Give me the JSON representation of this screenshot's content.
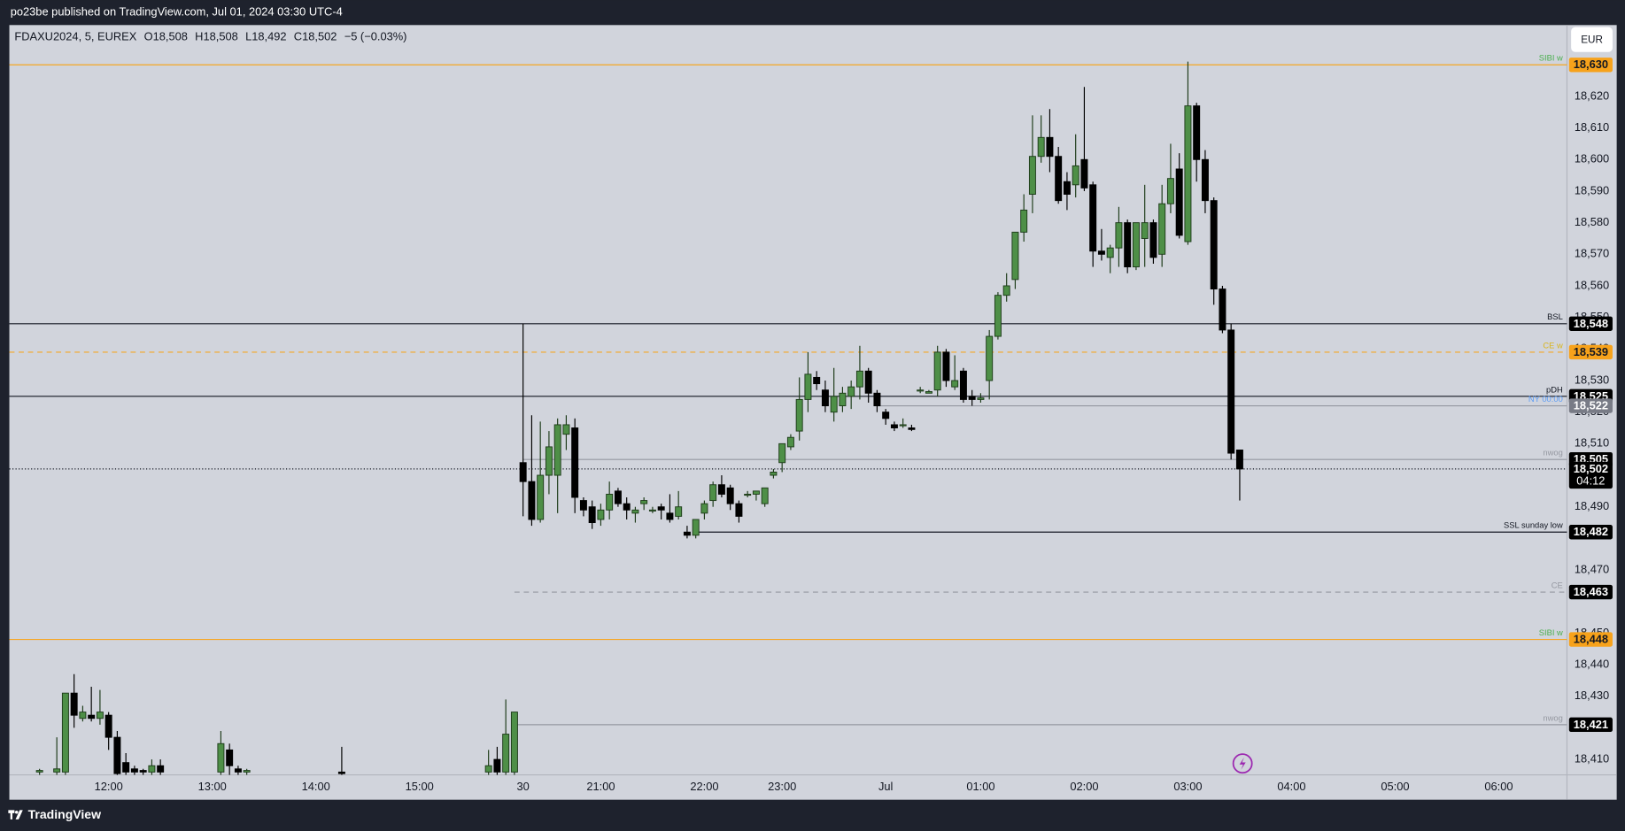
{
  "header": {
    "publisher": "po23be published on TradingView.com, Jul 01, 2024 03:30 UTC-4"
  },
  "currency": "EUR",
  "footer": "TradingView",
  "chart_data": {
    "type": "candlestick",
    "legend": {
      "symbol": "FDAXU2024, 5, EUREX",
      "open": "O18,508",
      "high": "H18,508",
      "low": "L18,492",
      "close": "C18,502",
      "change": "−5 (−0.03%)"
    },
    "up_color": "#4e8f47",
    "down_color": "#000000",
    "grid": false,
    "xlim": [
      -0.5,
      179.9
    ],
    "ylim": [
      18405.1,
      18642.6
    ],
    "xticks": [
      {
        "value": 11,
        "label": "12:00"
      },
      {
        "value": 23,
        "label": "13:00"
      },
      {
        "value": 35,
        "label": "14:00"
      },
      {
        "value": 47,
        "label": "15:00"
      },
      {
        "value": 59,
        "label": "30"
      },
      {
        "value": 68,
        "label": "21:00"
      },
      {
        "value": 80,
        "label": "22:00"
      },
      {
        "value": 89,
        "label": "23:00"
      },
      {
        "value": 101,
        "label": "Jul"
      },
      {
        "value": 112,
        "label": "01:00"
      },
      {
        "value": 124,
        "label": "02:00"
      },
      {
        "value": 136,
        "label": "03:00"
      },
      {
        "value": 148,
        "label": "04:00"
      },
      {
        "value": 160,
        "label": "05:00"
      },
      {
        "value": 172,
        "label": "06:00"
      }
    ],
    "yticks": [
      {
        "value": 18410,
        "label": "18,410"
      },
      {
        "value": 18430,
        "label": "18,430"
      },
      {
        "value": 18440,
        "label": "18,440"
      },
      {
        "value": 18450,
        "label": "18,450"
      },
      {
        "value": 18470,
        "label": "18,470"
      },
      {
        "value": 18490,
        "label": "18,490"
      },
      {
        "value": 18510,
        "label": "18,510"
      },
      {
        "value": 18520,
        "label": "18,520"
      },
      {
        "value": 18530,
        "label": "18,530"
      },
      {
        "value": 18540,
        "label": "18,540"
      },
      {
        "value": 18550,
        "label": "18,550"
      },
      {
        "value": 18560,
        "label": "18,560"
      },
      {
        "value": 18570,
        "label": "18,570"
      },
      {
        "value": 18580,
        "label": "18,580"
      },
      {
        "value": 18590,
        "label": "18,590"
      },
      {
        "value": 18600,
        "label": "18,600"
      },
      {
        "value": 18610,
        "label": "18,610"
      },
      {
        "value": 18620,
        "label": "18,620"
      }
    ],
    "levels": [
      {
        "name": "SIBI w",
        "value": 18630,
        "value_label": "18,630",
        "line": "#f5a623",
        "text": "#4caf50",
        "box": "#f7a21b",
        "box_text": "#131722"
      },
      {
        "name": "BSL",
        "value": 18548,
        "value_label": "18,548",
        "line": "#131722",
        "text": "#131722",
        "box": "#000000",
        "box_text": "#ffffff"
      },
      {
        "name": "CE w",
        "value": 18539,
        "value_label": "18,539",
        "line": "#f5a623",
        "dash": "dashed",
        "text": "#d9b51c",
        "box": "#f7a21b",
        "box_text": "#131722"
      },
      {
        "name": "pDH",
        "value": 18525,
        "value_label": "18,525",
        "line": "#131722",
        "text": "#131722",
        "box": "#000000",
        "box_text": "#ffffff"
      },
      {
        "name": "NY 00:00",
        "value": 18522,
        "value_label": "18,522",
        "start": 100,
        "line": "#9598a1",
        "text": "#5b9cf6",
        "box": "#787b86",
        "box_text": "#ffffff"
      },
      {
        "name": "nwog",
        "value": 18505,
        "value_label": "18,505",
        "start": 59,
        "line": "#9598a1",
        "text": "#9598a1",
        "box": "#000000",
        "box_text": "#ffffff"
      },
      {
        "value": 18502,
        "value_label": "18,502",
        "countdown": "04:12",
        "line": "#131722",
        "dash": "dotted",
        "box": "#000000",
        "box_text": "#ffffff"
      },
      {
        "name": "SSL sunday low",
        "value": 18482,
        "value_label": "18,482",
        "start": 79,
        "line": "#131722",
        "text": "#131722",
        "box": "#000000",
        "box_text": "#ffffff"
      },
      {
        "name": "CE",
        "value": 18463,
        "value_label": "18,463",
        "start": 58,
        "line": "#9598a1",
        "dash": "dashed",
        "text": "#9598a1",
        "box": "#000000",
        "box_text": "#ffffff"
      },
      {
        "name": "SIBI w",
        "value": 18448,
        "value_label": "18,448",
        "line": "#f5a623",
        "text": "#4caf50",
        "box": "#f7a21b",
        "box_text": "#131722"
      },
      {
        "name": "nwog",
        "value": 18421,
        "value_label": "18,421",
        "start": 58,
        "line": "#9598a1",
        "text": "#9598a1",
        "box": "#000000",
        "box_text": "#ffffff"
      }
    ],
    "candles": [
      {
        "x": 3,
        "o": 18406,
        "h": 18407,
        "l": 18405,
        "c": 18406.5
      },
      {
        "x": 5,
        "o": 18406,
        "h": 18417,
        "l": 18405,
        "c": 18407
      },
      {
        "x": 6,
        "o": 18406,
        "h": 18431,
        "l": 18405,
        "c": 18431
      },
      {
        "x": 7,
        "o": 18431,
        "h": 18437,
        "l": 18420,
        "c": 18424
      },
      {
        "x": 8,
        "o": 18423,
        "h": 18427,
        "l": 18422,
        "c": 18425
      },
      {
        "x": 9,
        "o": 18424,
        "h": 18433,
        "l": 18422,
        "c": 18423
      },
      {
        "x": 10,
        "o": 18423,
        "h": 18432,
        "l": 18421,
        "c": 18425
      },
      {
        "x": 11,
        "o": 18424,
        "h": 18425,
        "l": 18413,
        "c": 18417
      },
      {
        "x": 12,
        "o": 18417,
        "h": 18419,
        "l": 18405,
        "c": 18405.5
      },
      {
        "x": 13,
        "o": 18409,
        "h": 18412,
        "l": 18405,
        "c": 18406
      },
      {
        "x": 14,
        "o": 18407,
        "h": 18408,
        "l": 18405,
        "c": 18406
      },
      {
        "x": 15,
        "o": 18406.5,
        "h": 18407,
        "l": 18405,
        "c": 18406
      },
      {
        "x": 16,
        "o": 18406,
        "h": 18410,
        "l": 18405,
        "c": 18408
      },
      {
        "x": 17,
        "o": 18408,
        "h": 18410,
        "l": 18405,
        "c": 18406
      },
      {
        "x": 24,
        "o": 18406,
        "h": 18419,
        "l": 18405,
        "c": 18415
      },
      {
        "x": 25,
        "o": 18413,
        "h": 18415,
        "l": 18405,
        "c": 18408
      },
      {
        "x": 26,
        "o": 18407,
        "h": 18408,
        "l": 18405,
        "c": 18406
      },
      {
        "x": 27,
        "o": 18406,
        "h": 18407,
        "l": 18405,
        "c": 18406.5
      },
      {
        "x": 38,
        "o": 18406,
        "h": 18414,
        "l": 18405,
        "c": 18405.5
      },
      {
        "x": 55,
        "o": 18406,
        "h": 18413,
        "l": 18405,
        "c": 18408
      },
      {
        "x": 56,
        "o": 18410,
        "h": 18414,
        "l": 18405,
        "c": 18406
      },
      {
        "x": 57,
        "o": 18406,
        "h": 18429,
        "l": 18405,
        "c": 18418
      },
      {
        "x": 58,
        "o": 18406,
        "h": 18425,
        "l": 18405,
        "c": 18425
      },
      {
        "x": 59,
        "o": 18504,
        "h": 18548,
        "l": 18487,
        "c": 18498
      },
      {
        "x": 60,
        "o": 18498,
        "h": 18519,
        "l": 18484,
        "c": 18486
      },
      {
        "x": 61,
        "o": 18486,
        "h": 18517,
        "l": 18485,
        "c": 18500
      },
      {
        "x": 62,
        "o": 18500,
        "h": 18514,
        "l": 18494,
        "c": 18509
      },
      {
        "x": 63,
        "o": 18500,
        "h": 18518,
        "l": 18488,
        "c": 18516
      },
      {
        "x": 64,
        "o": 18513,
        "h": 18519,
        "l": 18508,
        "c": 18516
      },
      {
        "x": 65,
        "o": 18515,
        "h": 18518,
        "l": 18488,
        "c": 18493
      },
      {
        "x": 66,
        "o": 18492,
        "h": 18493,
        "l": 18487,
        "c": 18489
      },
      {
        "x": 67,
        "o": 18490,
        "h": 18492,
        "l": 18483,
        "c": 18485
      },
      {
        "x": 68,
        "o": 18486,
        "h": 18491,
        "l": 18484,
        "c": 18489
      },
      {
        "x": 69,
        "o": 18489,
        "h": 18498,
        "l": 18486,
        "c": 18494
      },
      {
        "x": 70,
        "o": 18495,
        "h": 18496,
        "l": 18490,
        "c": 18491
      },
      {
        "x": 71,
        "o": 18491,
        "h": 18493,
        "l": 18486,
        "c": 18489
      },
      {
        "x": 72,
        "o": 18488,
        "h": 18490,
        "l": 18485,
        "c": 18489
      },
      {
        "x": 73,
        "o": 18491,
        "h": 18493,
        "l": 18489,
        "c": 18492
      },
      {
        "x": 74,
        "o": 18489,
        "h": 18490,
        "l": 18488,
        "c": 18489
      },
      {
        "x": 75,
        "o": 18490,
        "h": 18491,
        "l": 18486,
        "c": 18489
      },
      {
        "x": 76,
        "o": 18488,
        "h": 18494,
        "l": 18485,
        "c": 18486
      },
      {
        "x": 77,
        "o": 18487,
        "h": 18495,
        "l": 18486,
        "c": 18490
      },
      {
        "x": 78,
        "o": 18482,
        "h": 18484,
        "l": 18480,
        "c": 18481
      },
      {
        "x": 79,
        "o": 18481,
        "h": 18485,
        "l": 18480,
        "c": 18486
      },
      {
        "x": 80,
        "o": 18488,
        "h": 18492,
        "l": 18486,
        "c": 18491
      },
      {
        "x": 81,
        "o": 18492,
        "h": 18498,
        "l": 18490,
        "c": 18497
      },
      {
        "x": 82,
        "o": 18497,
        "h": 18500,
        "l": 18493,
        "c": 18494
      },
      {
        "x": 83,
        "o": 18496,
        "h": 18497,
        "l": 18489,
        "c": 18491
      },
      {
        "x": 84,
        "o": 18491,
        "h": 18492,
        "l": 18485,
        "c": 18487
      },
      {
        "x": 85,
        "o": 18494,
        "h": 18495,
        "l": 18493,
        "c": 18494
      },
      {
        "x": 86,
        "o": 18494,
        "h": 18495,
        "l": 18492,
        "c": 18495
      },
      {
        "x": 87,
        "o": 18491,
        "h": 18496,
        "l": 18490,
        "c": 18496
      },
      {
        "x": 88,
        "o": 18500,
        "h": 18502,
        "l": 18499,
        "c": 18501
      },
      {
        "x": 89,
        "o": 18504,
        "h": 18510,
        "l": 18501,
        "c": 18510
      },
      {
        "x": 90,
        "o": 18509,
        "h": 18513,
        "l": 18508,
        "c": 18512
      },
      {
        "x": 91,
        "o": 18514,
        "h": 18531,
        "l": 18511,
        "c": 18524
      },
      {
        "x": 92,
        "o": 18524,
        "h": 18539,
        "l": 18520,
        "c": 18532
      },
      {
        "x": 93,
        "o": 18531,
        "h": 18533,
        "l": 18527,
        "c": 18529
      },
      {
        "x": 94,
        "o": 18527,
        "h": 18530,
        "l": 18520,
        "c": 18522
      },
      {
        "x": 95,
        "o": 18520,
        "h": 18534,
        "l": 18517,
        "c": 18525
      },
      {
        "x": 96,
        "o": 18522,
        "h": 18528,
        "l": 18520,
        "c": 18526
      },
      {
        "x": 97,
        "o": 18525,
        "h": 18530,
        "l": 18521,
        "c": 18528
      },
      {
        "x": 98,
        "o": 18528,
        "h": 18541,
        "l": 18524,
        "c": 18533
      },
      {
        "x": 99,
        "o": 18533,
        "h": 18534,
        "l": 18523,
        "c": 18526
      },
      {
        "x": 100,
        "o": 18526,
        "h": 18527,
        "l": 18520,
        "c": 18522
      },
      {
        "x": 101,
        "o": 18520,
        "h": 18521,
        "l": 18516,
        "c": 18518
      },
      {
        "x": 102,
        "o": 18516,
        "h": 18517,
        "l": 18514,
        "c": 18515
      },
      {
        "x": 103,
        "o": 18516,
        "h": 18518,
        "l": 18515,
        "c": 18516
      },
      {
        "x": 104,
        "o": 18515,
        "h": 18516,
        "l": 18514,
        "c": 18514.5
      },
      {
        "x": 105,
        "o": 18527,
        "h": 18528,
        "l": 18526,
        "c": 18527
      },
      {
        "x": 106,
        "o": 18526,
        "h": 18527,
        "l": 18526,
        "c": 18526.5
      },
      {
        "x": 107,
        "o": 18527,
        "h": 18541,
        "l": 18525,
        "c": 18539
      },
      {
        "x": 108,
        "o": 18539,
        "h": 18540,
        "l": 18528,
        "c": 18530
      },
      {
        "x": 109,
        "o": 18528,
        "h": 18538,
        "l": 18527,
        "c": 18530
      },
      {
        "x": 110,
        "o": 18533,
        "h": 18534,
        "l": 18523,
        "c": 18524
      },
      {
        "x": 111,
        "o": 18525,
        "h": 18527,
        "l": 18522,
        "c": 18524
      },
      {
        "x": 112,
        "o": 18524,
        "h": 18526,
        "l": 18523,
        "c": 18524.5
      },
      {
        "x": 113,
        "o": 18530,
        "h": 18546,
        "l": 18524,
        "c": 18544
      },
      {
        "x": 114,
        "o": 18544,
        "h": 18558,
        "l": 18543,
        "c": 18557
      },
      {
        "x": 115,
        "o": 18557,
        "h": 18564,
        "l": 18555,
        "c": 18560
      },
      {
        "x": 116,
        "o": 18562,
        "h": 18577,
        "l": 18559,
        "c": 18577
      },
      {
        "x": 117,
        "o": 18577,
        "h": 18589,
        "l": 18574,
        "c": 18584
      },
      {
        "x": 118,
        "o": 18589,
        "h": 18614,
        "l": 18583,
        "c": 18601
      },
      {
        "x": 119,
        "o": 18601,
        "h": 18614,
        "l": 18599,
        "c": 18607
      },
      {
        "x": 120,
        "o": 18607,
        "h": 18616,
        "l": 18596,
        "c": 18601
      },
      {
        "x": 121,
        "o": 18601,
        "h": 18604,
        "l": 18586,
        "c": 18587
      },
      {
        "x": 122,
        "o": 18593,
        "h": 18596,
        "l": 18584,
        "c": 18589
      },
      {
        "x": 123,
        "o": 18592,
        "h": 18608,
        "l": 18588,
        "c": 18598
      },
      {
        "x": 124,
        "o": 18600,
        "h": 18623,
        "l": 18590,
        "c": 18591
      },
      {
        "x": 125,
        "o": 18592,
        "h": 18593,
        "l": 18566,
        "c": 18571
      },
      {
        "x": 126,
        "o": 18571,
        "h": 18578,
        "l": 18568,
        "c": 18570
      },
      {
        "x": 127,
        "o": 18569,
        "h": 18573,
        "l": 18564,
        "c": 18572
      },
      {
        "x": 128,
        "o": 18572,
        "h": 18585,
        "l": 18566,
        "c": 18580
      },
      {
        "x": 129,
        "o": 18580,
        "h": 18581,
        "l": 18564,
        "c": 18566
      },
      {
        "x": 130,
        "o": 18566,
        "h": 18580,
        "l": 18565,
        "c": 18580
      },
      {
        "x": 131,
        "o": 18575,
        "h": 18592,
        "l": 18566,
        "c": 18580
      },
      {
        "x": 132,
        "o": 18580,
        "h": 18581,
        "l": 18567,
        "c": 18569
      },
      {
        "x": 133,
        "o": 18570,
        "h": 18592,
        "l": 18566,
        "c": 18586
      },
      {
        "x": 134,
        "o": 18586,
        "h": 18605,
        "l": 18583,
        "c": 18594
      },
      {
        "x": 135,
        "o": 18597,
        "h": 18602,
        "l": 18575,
        "c": 18576
      },
      {
        "x": 136,
        "o": 18574,
        "h": 18631,
        "l": 18573,
        "c": 18617
      },
      {
        "x": 137,
        "o": 18617,
        "h": 18618,
        "l": 18593,
        "c": 18600
      },
      {
        "x": 138,
        "o": 18600,
        "h": 18603,
        "l": 18583,
        "c": 18587
      },
      {
        "x": 139,
        "o": 18587,
        "h": 18588,
        "l": 18554,
        "c": 18559
      },
      {
        "x": 140,
        "o": 18559,
        "h": 18560,
        "l": 18545,
        "c": 18546
      },
      {
        "x": 141,
        "o": 18546,
        "h": 18548,
        "l": 18505,
        "c": 18507
      },
      {
        "x": 142,
        "o": 18508,
        "h": 18508,
        "l": 18492,
        "c": 18502
      }
    ]
  }
}
